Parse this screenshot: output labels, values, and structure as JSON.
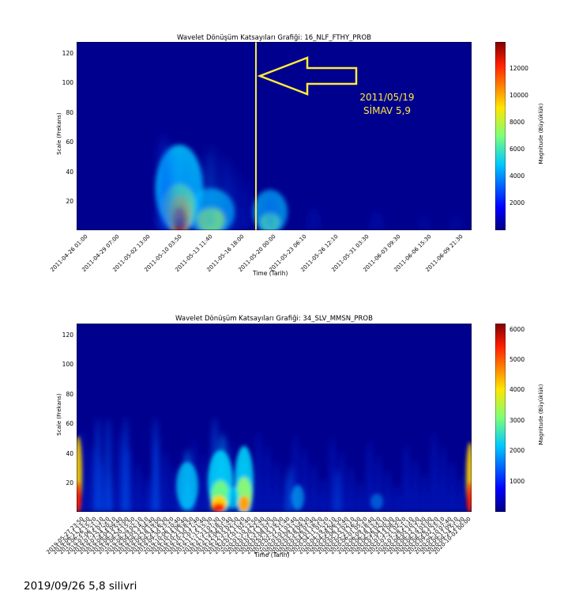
{
  "footer_text": "2019/09/26 5,8 silivri",
  "chart_data": [
    {
      "type": "heatmap",
      "title": "Wavelet Dönüşüm Katsayıları Grafiği: 16_NLF_FTHY_PROB",
      "xlabel": "Time (Tarih)",
      "ylabel": "Scale (Frekans)",
      "colorbar_label": "Magnitude (Büyüklük)",
      "colormap": "jet",
      "ylim": [
        1,
        128
      ],
      "yticks": [
        "20",
        "40",
        "60",
        "80",
        "100",
        "120"
      ],
      "xticks": [
        "2011-04-26 01:00",
        "2011-04-29 07:00",
        "2011-05-02 13:00",
        "2011-05-10 03:50",
        "2011-05-13 11:40",
        "2011-05-16 18:00",
        "2011-05-20 00:00",
        "2011-05-23 06:10",
        "2011-05-26 12:10",
        "2011-05-31 03:30",
        "2011-06-03 09:30",
        "2011-06-06 15:30",
        "2011-06-09 21:30"
      ],
      "colorbar_ticks": [
        "2000",
        "4000",
        "6000",
        "8000",
        "10000",
        "12000"
      ],
      "colorbar_range": [
        0,
        14000
      ],
      "marker_line": {
        "x": "2011-05-19",
        "color": "#ffeb3b"
      },
      "annotation": {
        "line1": "2011/05/19",
        "line2": "SİMAV 5,9",
        "color": "#ffeb3b"
      }
    },
    {
      "type": "heatmap",
      "title": "Wavelet Dönüşüm Katsayıları Grafiği: 34_SLV_MMSN_PROB",
      "xlabel": "Time (Tarih)",
      "ylabel": "Scale (Frekans)",
      "colorbar_label": "Magnitude (Büyüklük)",
      "colormap": "jet",
      "ylim": [
        1,
        128
      ],
      "yticks": [
        "20",
        "40",
        "60",
        "80",
        "100",
        "120"
      ],
      "xticks": [
        "2019-05-27 23:50",
        "2019-06-11 13:50",
        "2019-06-26 15:20",
        "2019-07-06 21:10",
        "2019-07-15 07:20",
        "2019-07-24 20:10",
        "2019-08-04 09:40",
        "2019-08-12 23:00",
        "2019-08-20 15:50",
        "2019-08-29 02:10",
        "2019-09-05 14:10",
        "2019-09-12 04:40",
        "2019-09-18 19:00",
        "2019-09-24 16:30",
        "2019-09-30 23:20",
        "2019-10-06 10:40",
        "2019-10-14 06:40",
        "2019-10-23 18:50",
        "2019-10-30 17:40",
        "2019-11-07 21:40",
        "2019-11-15 15:30",
        "2019-11-23 07:30",
        "2019-11-29 18:10",
        "2019-12-06 01:40",
        "2019-12-15 02:50",
        "2019-12-22 11:20",
        "2020-01-01 02:40",
        "2020-01-10 12:50",
        "2020-01-20 22:40",
        "2020-01-31 13:30",
        "2020-02-08 07:30",
        "2020-02-15 19:30",
        "2020-02-22 21:40",
        "2020-03-01 03:40",
        "2020-03-09 11:20",
        "2020-03-18 09:30",
        "2020-03-26 07:40",
        "2020-04-03 18:20",
        "2020-04-11 01:20",
        "2020-04-19 22:10",
        "2020-04-28 06:50",
        "2020-05-06 13:40",
        "2020-05-15 02:10",
        "2020-05-23 16:30",
        "2020-06-01 05:20",
        "2020-06-09 18:40",
        "2020-06-18 13:20",
        "2020-06-26 02:10",
        "2020-07-04 20:30",
        "2020-07-13 08:50",
        "2020-07-21 02:20",
        "2020-07-28 21:10",
        "2020-08-05 10:50",
        "2020-08-12 17:30",
        "2020-08-19 03:00",
        "2020-08-26 10:20",
        "2020-09-02 23:10",
        "2020-09-10 07:40",
        "2020-09-17 09:10",
        "2020-09-24 21:30",
        "2020-10-02 00:00"
      ],
      "colorbar_ticks": [
        "1000",
        "2000",
        "3000",
        "4000",
        "5000",
        "6000"
      ],
      "colorbar_range": [
        0,
        6200
      ]
    }
  ]
}
